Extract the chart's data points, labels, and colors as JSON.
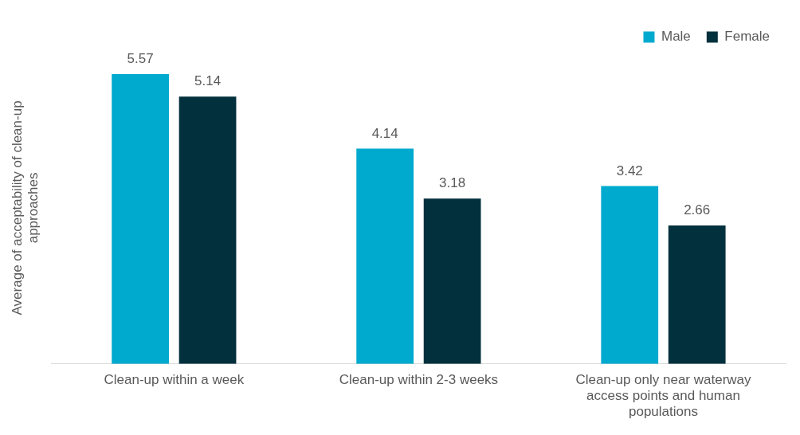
{
  "chart_data": {
    "type": "bar",
    "ylabel": "Average of acceptability of clean-up approaches",
    "categories": [
      "Clean-up within a week",
      "Clean-up within 2-3 weeks",
      "Clean-up only near waterway access points and human populations"
    ],
    "series": [
      {
        "name": "Male",
        "color": "#00a9ce",
        "values": [
          5.57,
          4.14,
          3.42
        ]
      },
      {
        "name": "Female",
        "color": "#03303d",
        "values": [
          5.14,
          3.18,
          2.66
        ]
      }
    ],
    "data_labels": true,
    "legend": "top right",
    "grid": false
  }
}
